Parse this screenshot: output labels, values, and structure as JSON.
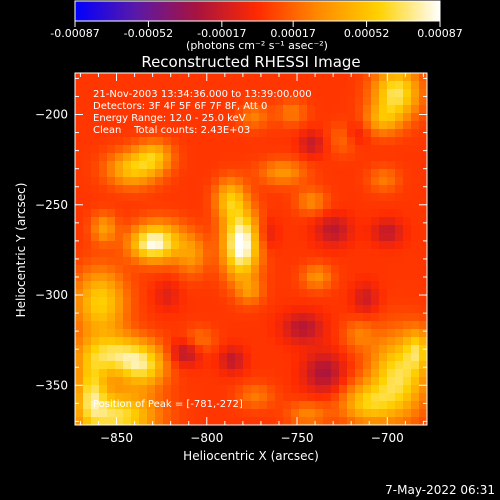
{
  "colorbar": {
    "tick_labels": [
      "-0.00087",
      "-0.00052",
      "-0.00017",
      "0.00017",
      "0.00052",
      "0.00087"
    ],
    "units_label": "(photons cm⁻² s⁻¹ asec⁻²)",
    "scale": [
      "#0000ff",
      "#5a19a8",
      "#a7133f",
      "#ff2a00",
      "#ff8a00",
      "#ffd200",
      "#ffffff"
    ]
  },
  "title": "Reconstructed RHESSI Image",
  "info_lines": [
    "21-Nov-2003 13:34:36.000 to 13:39:00.000",
    "Detectors: 3F 4F 5F 6F 7F 8F, Att 0",
    "Energy Range: 12.0 - 25.0 keV",
    "Clean    Total counts: 2.43E+03"
  ],
  "peak_label": "Position of Peak = [-781,-272]",
  "footer_timestamp": "7-May-2022 06:31",
  "chart_data": {
    "type": "heatmap",
    "title": "Reconstructed RHESSI Image",
    "xlabel": "Heliocentric X (arcsec)",
    "ylabel": "Heliocentric Y (arcsec)",
    "xlim": [
      -873,
      -678
    ],
    "ylim": [
      -372,
      -177
    ],
    "x_ticks": [
      -850,
      -800,
      -750,
      -700
    ],
    "y_ticks": [
      -200,
      -250,
      -300,
      -350
    ],
    "x_tick_labels": [
      "−850",
      "−800",
      "−750",
      "−700"
    ],
    "y_tick_labels": [
      "−200",
      "−250",
      "−300",
      "−350"
    ],
    "zlim": [
      -0.00087,
      0.00087
    ],
    "z_units": "photons cm^-2 s^-1 asec^-2",
    "peak": {
      "x": -781,
      "y": -272
    },
    "features": [
      {
        "x": -781,
        "y": -272,
        "sx": 7,
        "sy": 13,
        "amp": 1.02
      },
      {
        "x": -787,
        "y": -247,
        "sx": 6,
        "sy": 8,
        "amp": 0.52
      },
      {
        "x": -808,
        "y": -278,
        "sx": 6,
        "sy": 8,
        "amp": 0.32
      },
      {
        "x": -826,
        "y": -270,
        "sx": 10,
        "sy": 8,
        "amp": 0.58
      },
      {
        "x": -832,
        "y": -272,
        "sx": 8,
        "sy": 6,
        "amp": 0.44
      },
      {
        "x": -841,
        "y": -230,
        "sx": 10,
        "sy": 7,
        "amp": 0.56
      },
      {
        "x": -829,
        "y": -223,
        "sx": 7,
        "sy": 6,
        "amp": 0.46
      },
      {
        "x": -859,
        "y": -304,
        "sx": 10,
        "sy": 13,
        "amp": 0.62
      },
      {
        "x": -851,
        "y": -333,
        "sx": 14,
        "sy": 8,
        "amp": 0.66
      },
      {
        "x": -835,
        "y": -340,
        "sx": 9,
        "sy": 8,
        "amp": 0.55
      },
      {
        "x": -849,
        "y": -367,
        "sx": 15,
        "sy": 10,
        "amp": 0.72
      },
      {
        "x": -864,
        "y": -353,
        "sx": 6,
        "sy": 12,
        "amp": 0.58
      },
      {
        "x": -857,
        "y": -263,
        "sx": 5,
        "sy": 6,
        "amp": 0.38
      },
      {
        "x": -776,
        "y": -298,
        "sx": 5,
        "sy": 5,
        "amp": 0.28
      },
      {
        "x": -739,
        "y": -290,
        "sx": 6,
        "sy": 5,
        "amp": 0.33
      },
      {
        "x": -758,
        "y": -232,
        "sx": 9,
        "sy": 5,
        "amp": 0.35
      },
      {
        "x": -742,
        "y": -248,
        "sx": 6,
        "sy": 5,
        "amp": 0.3
      },
      {
        "x": -695,
        "y": -188,
        "sx": 9,
        "sy": 10,
        "amp": 0.75
      },
      {
        "x": -703,
        "y": -203,
        "sx": 7,
        "sy": 6,
        "amp": 0.38
      },
      {
        "x": -694,
        "y": -345,
        "sx": 11,
        "sy": 16,
        "amp": 0.72
      },
      {
        "x": -712,
        "y": -360,
        "sx": 10,
        "sy": 8,
        "amp": 0.52
      },
      {
        "x": -683,
        "y": -330,
        "sx": 5,
        "sy": 8,
        "amp": 0.45
      },
      {
        "x": -744,
        "y": -366,
        "sx": 8,
        "sy": 5,
        "amp": 0.28
      },
      {
        "x": -773,
        "y": -356,
        "sx": 7,
        "sy": 5,
        "amp": 0.24
      },
      {
        "x": -804,
        "y": -325,
        "sx": 6,
        "sy": 5,
        "amp": 0.22
      },
      {
        "x": -716,
        "y": -322,
        "sx": 6,
        "sy": 6,
        "amp": 0.24
      },
      {
        "x": -723,
        "y": -213,
        "sx": 6,
        "sy": 6,
        "amp": 0.25
      },
      {
        "x": -702,
        "y": -236,
        "sx": 6,
        "sy": 5,
        "amp": 0.24
      },
      {
        "x": -774,
        "y": -201,
        "sx": 6,
        "sy": 5,
        "amp": 0.26
      },
      {
        "x": -753,
        "y": -199,
        "sx": 6,
        "sy": 5,
        "amp": 0.24
      },
      {
        "x": -735,
        "y": -343,
        "sx": 8,
        "sy": 8,
        "amp": -0.36
      },
      {
        "x": -747,
        "y": -318,
        "sx": 8,
        "sy": 6,
        "amp": -0.32
      },
      {
        "x": -812,
        "y": -332,
        "sx": 6,
        "sy": 5,
        "amp": -0.34
      },
      {
        "x": -786,
        "y": -336,
        "sx": 5,
        "sy": 5,
        "amp": -0.28
      },
      {
        "x": -730,
        "y": -264,
        "sx": 7,
        "sy": 6,
        "amp": -0.3
      },
      {
        "x": -700,
        "y": -265,
        "sx": 6,
        "sy": 5,
        "amp": -0.28
      },
      {
        "x": -742,
        "y": -216,
        "sx": 5,
        "sy": 5,
        "amp": -0.26
      },
      {
        "x": -718,
        "y": -211,
        "sx": 5,
        "sy": 5,
        "amp": -0.25
      },
      {
        "x": -712,
        "y": -302,
        "sx": 5,
        "sy": 6,
        "amp": -0.24
      },
      {
        "x": -822,
        "y": -300,
        "sx": 5,
        "sy": 6,
        "amp": -0.16
      },
      {
        "x": -766,
        "y": -266,
        "sx": 4,
        "sy": 6,
        "amp": -0.18
      }
    ]
  }
}
